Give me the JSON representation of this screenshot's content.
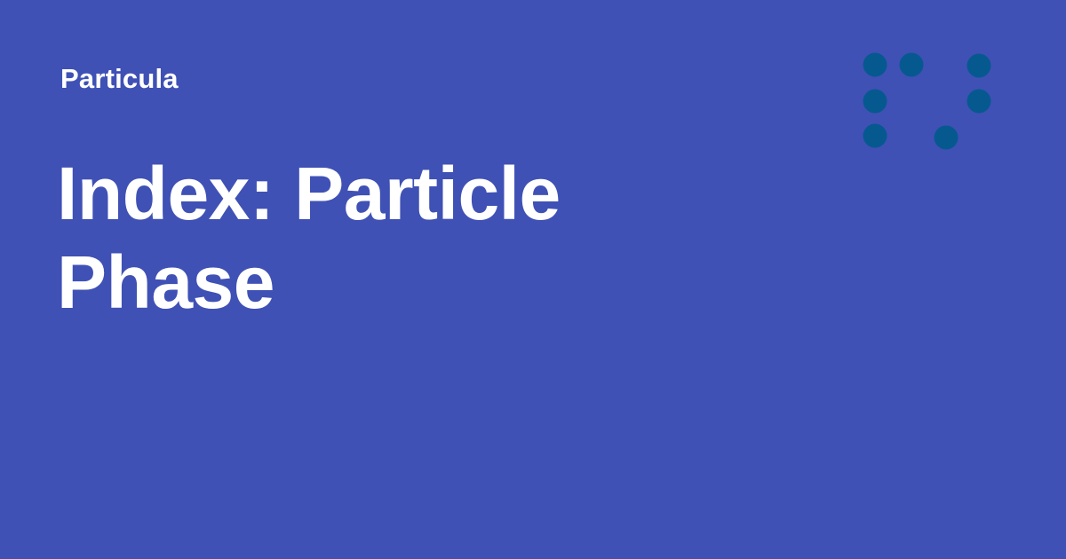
{
  "site": {
    "name": "Particula"
  },
  "page": {
    "title_lines": [
      "Index: Particle",
      "Phase"
    ]
  },
  "colors": {
    "background": "#3f51b5",
    "text": "#ffffff",
    "logo_dots": "#06598f"
  },
  "logo": {
    "icon": "dot-grid-logo-icon"
  }
}
